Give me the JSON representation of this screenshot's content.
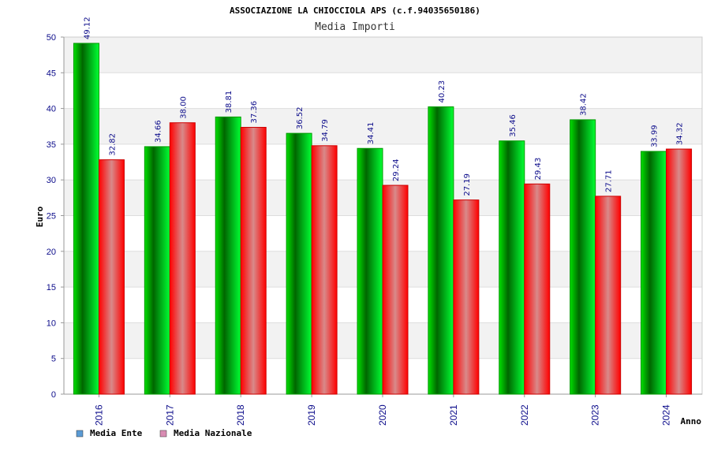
{
  "chart_data": {
    "type": "bar",
    "title": "ASSOCIAZIONE LA CHIOCCIOLA APS (c.f.94035650186)",
    "subtitle": "Media Importi",
    "xlabel": "Anno",
    "ylabel": "Euro",
    "ylim": [
      0,
      50
    ],
    "yticks": [
      0,
      5,
      10,
      15,
      20,
      25,
      30,
      35,
      40,
      45,
      50
    ],
    "grid": true,
    "legend_position": "bottom-left",
    "categories": [
      "2016",
      "2017",
      "2018",
      "2019",
      "2020",
      "2021",
      "2022",
      "2023",
      "2024"
    ],
    "series": [
      {
        "name": "Media Ente",
        "color": "#00cc00",
        "legend_color": "#5b9bd5",
        "values": [
          49.12,
          34.66,
          38.81,
          36.52,
          34.41,
          40.23,
          35.46,
          38.42,
          33.99
        ],
        "labels": [
          "49.12",
          "34.66",
          "38.81",
          "36.52",
          "34.41",
          "40.23",
          "35.46",
          "38.42",
          "33.99"
        ]
      },
      {
        "name": "Media Nazionale",
        "color": "#ff1a1a",
        "legend_color": "#d98cb3",
        "values": [
          32.82,
          38.0,
          37.36,
          34.79,
          29.24,
          27.19,
          29.43,
          27.71,
          34.32
        ],
        "labels": [
          "32.82",
          "38.00",
          "37.36",
          "34.79",
          "29.24",
          "27.19",
          "29.43",
          "27.71",
          "34.32"
        ]
      }
    ]
  }
}
